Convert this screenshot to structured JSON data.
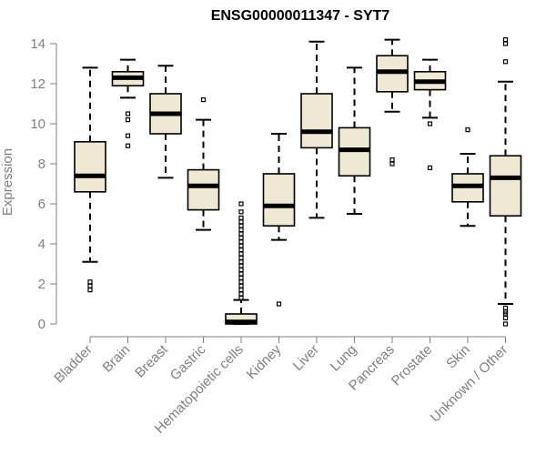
{
  "chart_data": {
    "type": "boxplot",
    "title": "ENSG00000011347 - SYT7",
    "xlabel": "",
    "ylabel": "Expression",
    "ylim": [
      0,
      14
    ],
    "yticks": [
      "0",
      "2",
      "4",
      "6",
      "8",
      "10",
      "12",
      "14"
    ],
    "box_fill": "#efe8d2",
    "categories": [
      "Bladder",
      "Brain",
      "Breast",
      "Gastric",
      "Hematopoietic cells",
      "Kidney",
      "Liver",
      "Lung",
      "Pancreas",
      "Prostate",
      "Skin",
      "Unknown / Other"
    ],
    "boxes": [
      {
        "name": "Bladder",
        "whisker_low": 3.1,
        "q1": 6.6,
        "median": 7.4,
        "q3": 9.1,
        "whisker_high": 12.8,
        "outliers": [
          2.1,
          1.9,
          1.7
        ]
      },
      {
        "name": "Brain",
        "whisker_low": 11.3,
        "q1": 11.9,
        "median": 12.3,
        "q3": 12.6,
        "whisker_high": 13.2,
        "outliers": [
          10.5,
          10.2,
          9.4,
          8.9
        ]
      },
      {
        "name": "Breast",
        "whisker_low": 7.3,
        "q1": 9.5,
        "median": 10.5,
        "q3": 11.5,
        "whisker_high": 12.9,
        "outliers": []
      },
      {
        "name": "Gastric",
        "whisker_low": 4.7,
        "q1": 5.7,
        "median": 6.9,
        "q3": 7.7,
        "whisker_high": 10.2,
        "outliers": [
          11.2
        ]
      },
      {
        "name": "Hematopoietic cells",
        "whisker_low": 0,
        "q1": 0,
        "median": 0.1,
        "q3": 0.5,
        "whisker_high": 1.2,
        "outliers": [
          1.3,
          1.5,
          1.7,
          1.9,
          2.1,
          2.3,
          2.5,
          2.7,
          2.9,
          3.1,
          3.3,
          3.5,
          3.7,
          3.9,
          4.1,
          4.3,
          4.5,
          4.7,
          4.9,
          5.1,
          5.3,
          5.6,
          6.0
        ]
      },
      {
        "name": "Kidney",
        "whisker_low": 4.2,
        "q1": 4.9,
        "median": 5.9,
        "q3": 7.5,
        "whisker_high": 9.5,
        "outliers": [
          1.0
        ]
      },
      {
        "name": "Liver",
        "whisker_low": 5.3,
        "q1": 8.8,
        "median": 9.6,
        "q3": 11.5,
        "whisker_high": 14.1,
        "outliers": []
      },
      {
        "name": "Lung",
        "whisker_low": 5.5,
        "q1": 7.4,
        "median": 8.7,
        "q3": 9.8,
        "whisker_high": 12.8,
        "outliers": []
      },
      {
        "name": "Pancreas",
        "whisker_low": 10.6,
        "q1": 11.6,
        "median": 12.6,
        "q3": 13.4,
        "whisker_high": 14.2,
        "outliers": [
          8.2,
          8.0
        ]
      },
      {
        "name": "Prostate",
        "whisker_low": 10.3,
        "q1": 11.7,
        "median": 12.1,
        "q3": 12.6,
        "whisker_high": 13.2,
        "outliers": [
          10.0,
          7.8
        ]
      },
      {
        "name": "Skin",
        "whisker_low": 4.9,
        "q1": 6.1,
        "median": 6.9,
        "q3": 7.5,
        "whisker_high": 8.5,
        "outliers": [
          9.7
        ]
      },
      {
        "name": "Unknown / Other",
        "whisker_low": 1.0,
        "q1": 5.4,
        "median": 7.3,
        "q3": 8.4,
        "whisker_high": 12.1,
        "outliers": [
          14.2,
          14.0,
          13.1,
          0.8,
          0.6,
          0.5,
          0.3,
          0.0
        ]
      }
    ]
  }
}
